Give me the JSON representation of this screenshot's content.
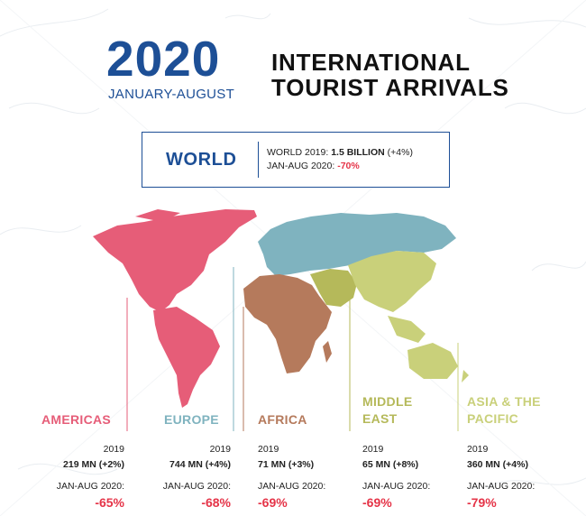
{
  "header": {
    "year": "2020",
    "period": "JANUARY-AUGUST",
    "title_line1": "INTERNATIONAL",
    "title_line2": "TOURIST ARRIVALS"
  },
  "world": {
    "label": "WORLD",
    "line1_prefix": "WORLD 2019: ",
    "line1_value": "1.5 BILLION",
    "line1_suffix": " (+4%)",
    "line2_prefix": "JAN-AUG 2020: ",
    "line2_value": "-70%"
  },
  "colors": {
    "americas": "#e65d78",
    "europe": "#7fb3bf",
    "africa": "#b57a5c",
    "middle_east": "#b5b95a",
    "asia_pacific": "#c9d07a",
    "negative": "#e53448",
    "brand_blue": "#1d4f96"
  },
  "regions": [
    {
      "id": "americas",
      "name_line1": "AMERICAS",
      "name_line2": "",
      "year_label": "2019",
      "arrivals": "219 MN (+2%)",
      "period_label": "JAN-AUG 2020:",
      "change": "-65%"
    },
    {
      "id": "europe",
      "name_line1": "EUROPE",
      "name_line2": "",
      "year_label": "2019",
      "arrivals": "744 MN (+4%)",
      "period_label": "JAN-AUG 2020:",
      "change": "-68%"
    },
    {
      "id": "africa",
      "name_line1": "AFRICA",
      "name_line2": "",
      "year_label": "2019",
      "arrivals": "71 MN (+3%)",
      "period_label": "JAN-AUG 2020:",
      "change": "-69%"
    },
    {
      "id": "middle_east",
      "name_line1": "MIDDLE",
      "name_line2": "EAST",
      "year_label": "2019",
      "arrivals": "65 MN (+8%)",
      "period_label": "JAN-AUG 2020:",
      "change": "-69%"
    },
    {
      "id": "asia_pacific",
      "name_line1": "ASIA & THE",
      "name_line2": "PACIFIC",
      "year_label": "2019",
      "arrivals": "360 MN (+4%)",
      "period_label": "JAN-AUG 2020:",
      "change": "-79%"
    }
  ]
}
